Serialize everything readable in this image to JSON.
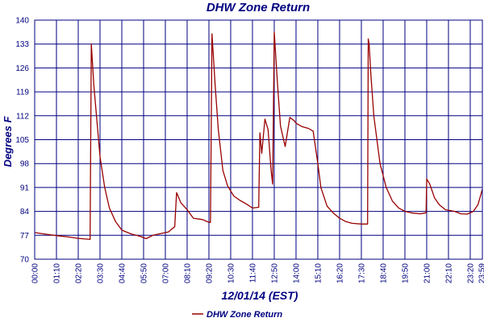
{
  "chart_data": {
    "type": "line",
    "title": "DHW Zone Return",
    "xlabel": "12/01/14 (EST)",
    "ylabel": "Degrees F",
    "ylim": [
      70,
      140
    ],
    "yticks": [
      70,
      77,
      84,
      91,
      98,
      105,
      112,
      119,
      126,
      133,
      140
    ],
    "xticks": [
      "00:00",
      "01:10",
      "02:20",
      "03:30",
      "04:40",
      "05:50",
      "07:00",
      "08:10",
      "09:20",
      "10:30",
      "11:40",
      "12:50",
      "14:00",
      "15:10",
      "16:20",
      "17:30",
      "18:40",
      "19:50",
      "21:00",
      "22:10",
      "23:20"
    ],
    "x_end_label": "23:59",
    "grid": true,
    "legend_position": "bottom-center",
    "colors": {
      "series": "#990000",
      "grid": "#000080",
      "text": "#000080"
    },
    "series": [
      {
        "name": "DHW Zone Return",
        "x": [
          "00:00",
          "00:30",
          "01:10",
          "01:50",
          "02:20",
          "02:58",
          "03:02",
          "03:10",
          "03:30",
          "03:45",
          "04:00",
          "04:20",
          "04:40",
          "05:10",
          "05:40",
          "05:58",
          "06:20",
          "06:50",
          "07:10",
          "07:20",
          "07:30",
          "07:36",
          "07:50",
          "08:10",
          "08:30",
          "09:00",
          "09:20",
          "09:25",
          "09:30",
          "09:40",
          "09:50",
          "10:05",
          "10:20",
          "10:40",
          "11:00",
          "11:20",
          "11:40",
          "12:00",
          "12:04",
          "12:10",
          "12:20",
          "12:30",
          "12:40",
          "12:45",
          "12:50",
          "13:00",
          "13:10",
          "13:25",
          "13:40",
          "13:55",
          "14:00",
          "14:20",
          "14:40",
          "14:55",
          "15:10",
          "15:20",
          "15:40",
          "16:00",
          "16:20",
          "16:40",
          "17:00",
          "17:30",
          "17:50",
          "17:52",
          "17:55",
          "18:00",
          "18:10",
          "18:30",
          "18:50",
          "19:10",
          "19:30",
          "19:50",
          "20:15",
          "20:40",
          "20:58",
          "21:00",
          "21:10",
          "21:25",
          "21:40",
          "22:00",
          "22:30",
          "22:50",
          "23:10",
          "23:30",
          "23:45",
          "23:59"
        ],
        "values": [
          77.8,
          77.4,
          76.9,
          76.5,
          76.1,
          75.8,
          133,
          121,
          100,
          91,
          85,
          81,
          78.5,
          77.4,
          76.7,
          76.0,
          77,
          77.6,
          78,
          78.8,
          79.5,
          89.5,
          86.5,
          84.5,
          82,
          81.6,
          80.8,
          80.8,
          136,
          121,
          108,
          96,
          91.5,
          88.5,
          87.2,
          86.2,
          85.0,
          85.2,
          107,
          101,
          111,
          108,
          96,
          92,
          136.5,
          122,
          109,
          103,
          111.5,
          110.5,
          109.8,
          108.8,
          108.3,
          107.5,
          98,
          91,
          85.5,
          83.5,
          82,
          81,
          80.5,
          80.3,
          80.3,
          134.5,
          133,
          125,
          112,
          98,
          91,
          87,
          85,
          84,
          83.5,
          83.3,
          83.6,
          93.5,
          92,
          88,
          86,
          84.5,
          84,
          83.3,
          83.2,
          84,
          86,
          90.5
        ]
      }
    ]
  }
}
